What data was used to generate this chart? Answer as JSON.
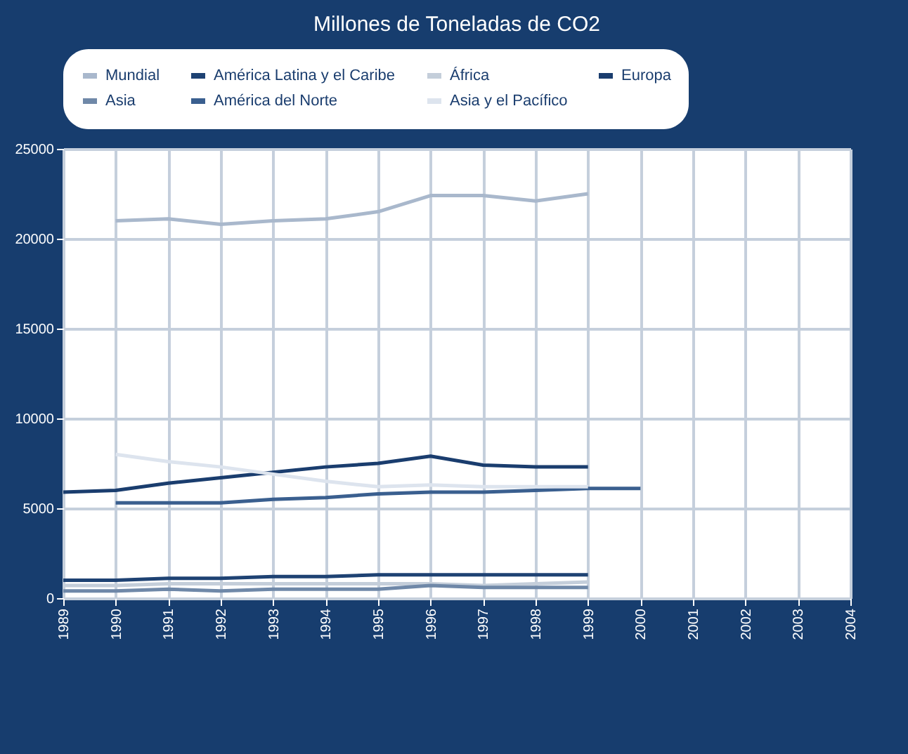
{
  "chart_data": {
    "type": "line",
    "title": "Millones de Toneladas de CO2",
    "xlim": [
      1989,
      2004
    ],
    "xticks": [
      1989,
      1990,
      1991,
      1992,
      1993,
      1994,
      1995,
      1996,
      1997,
      1998,
      1999,
      2000,
      2001,
      2002,
      2003,
      2004
    ],
    "ylim": [
      0,
      25000
    ],
    "yticks": [
      0,
      5000,
      10000,
      15000,
      20000,
      25000
    ],
    "grid": true,
    "legend": "top",
    "series": [
      {
        "name": "Mundial",
        "color": "#a9b8cc",
        "x": [
          1990,
          1991,
          1992,
          1993,
          1994,
          1995,
          1996,
          1997,
          1998,
          1999
        ],
        "values": [
          21000,
          21100,
          20800,
          21000,
          21100,
          21500,
          22400,
          22400,
          22100,
          22500
        ]
      },
      {
        "name": "América Latina y el Caribe",
        "color": "#1e4273",
        "x": [
          1989,
          1990,
          1991,
          1992,
          1993,
          1994,
          1995,
          1996,
          1997,
          1998,
          1999
        ],
        "values": [
          1000,
          1000,
          1100,
          1100,
          1200,
          1200,
          1300,
          1300,
          1300,
          1300,
          1300
        ]
      },
      {
        "name": "África",
        "color": "#c4ceda",
        "x": [
          1989,
          1990,
          1991,
          1992,
          1993,
          1994,
          1995,
          1996,
          1997,
          1998,
          1999
        ],
        "values": [
          700,
          700,
          800,
          800,
          800,
          800,
          800,
          800,
          700,
          800,
          900
        ]
      },
      {
        "name": "Europa",
        "color": "#1a3d6e",
        "x": [
          1989,
          1990,
          1991,
          1992,
          1993,
          1994,
          1995,
          1996,
          1997,
          1998,
          1999
        ],
        "values": [
          5900,
          6000,
          6400,
          6700,
          7000,
          7300,
          7500,
          7900,
          7400,
          7300,
          7300
        ]
      },
      {
        "name": "Asia",
        "color": "#6f88a8",
        "x": [
          1989,
          1990,
          1991,
          1992,
          1993,
          1994,
          1995,
          1996,
          1997,
          1998,
          1999
        ],
        "values": [
          400,
          400,
          500,
          400,
          500,
          500,
          500,
          700,
          600,
          600,
          600
        ]
      },
      {
        "name": "América del Norte",
        "color": "#3a5f8f",
        "x": [
          1990,
          1991,
          1992,
          1993,
          1994,
          1995,
          1996,
          1997,
          1998,
          1999,
          2000
        ],
        "values": [
          5300,
          5300,
          5300,
          5500,
          5600,
          5800,
          5900,
          5900,
          6000,
          6100,
          6100
        ]
      },
      {
        "name": "Asia y el Pacífico",
        "color": "#dde4ee",
        "x": [
          1990,
          1991,
          1992,
          1993,
          1994,
          1995,
          1996,
          1997,
          1998,
          1999
        ],
        "values": [
          8000,
          7600,
          7300,
          6900,
          6500,
          6200,
          6300,
          6200,
          6200,
          6200
        ]
      }
    ]
  }
}
